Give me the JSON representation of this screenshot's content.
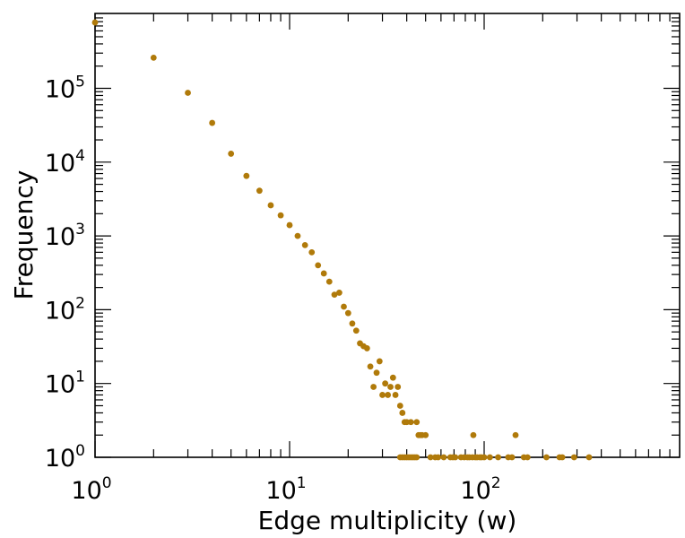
{
  "chart_data": {
    "type": "scatter",
    "title": "",
    "xlabel": "Edge multiplicity (w)",
    "ylabel": "Frequency",
    "xscale": "log",
    "yscale": "log",
    "xlim": [
      1,
      1000
    ],
    "ylim": [
      1,
      1000000
    ],
    "grid": false,
    "marker_color": "#B07A0A",
    "x_ticks": [
      {
        "base": "10",
        "exp": "0"
      },
      {
        "base": "10",
        "exp": "1"
      },
      {
        "base": "10",
        "exp": "2"
      }
    ],
    "y_ticks": [
      {
        "base": "10",
        "exp": "0"
      },
      {
        "base": "10",
        "exp": "1"
      },
      {
        "base": "10",
        "exp": "2"
      },
      {
        "base": "10",
        "exp": "3"
      },
      {
        "base": "10",
        "exp": "4"
      },
      {
        "base": "10",
        "exp": "5"
      }
    ],
    "series": [
      {
        "points": [
          [
            1,
            780000
          ],
          [
            2,
            260000
          ],
          [
            3,
            87000
          ],
          [
            4,
            34000
          ],
          [
            5,
            13000
          ],
          [
            6,
            6500
          ],
          [
            7,
            4100
          ],
          [
            8,
            2600
          ],
          [
            9,
            1900
          ],
          [
            10,
            1400
          ],
          [
            11,
            1000
          ],
          [
            12,
            750
          ],
          [
            13,
            600
          ],
          [
            14,
            400
          ],
          [
            15,
            310
          ],
          [
            16,
            240
          ],
          [
            17,
            160
          ],
          [
            18,
            170
          ],
          [
            19,
            110
          ],
          [
            20,
            90
          ],
          [
            21,
            65
          ],
          [
            22,
            52
          ],
          [
            23,
            35
          ],
          [
            24,
            32
          ],
          [
            25,
            30
          ],
          [
            26,
            17
          ],
          [
            27,
            9
          ],
          [
            28,
            14
          ],
          [
            29,
            20
          ],
          [
            30,
            7
          ],
          [
            31,
            10
          ],
          [
            32,
            7
          ],
          [
            33,
            9
          ],
          [
            34,
            12
          ],
          [
            35,
            7
          ],
          [
            36,
            9
          ],
          [
            37,
            5
          ],
          [
            38,
            4
          ],
          [
            39,
            3
          ],
          [
            40,
            3
          ],
          [
            42,
            3
          ],
          [
            45,
            3
          ],
          [
            46,
            2
          ],
          [
            47,
            2
          ],
          [
            48,
            2
          ],
          [
            50,
            2
          ],
          [
            88,
            2
          ],
          [
            145,
            2
          ],
          [
            37,
            1
          ],
          [
            38,
            1
          ],
          [
            39,
            1
          ],
          [
            40,
            1
          ],
          [
            41,
            1
          ],
          [
            42,
            1
          ],
          [
            43,
            1
          ],
          [
            44,
            1
          ],
          [
            45,
            1
          ],
          [
            53,
            1
          ],
          [
            56,
            1
          ],
          [
            58,
            1
          ],
          [
            62,
            1
          ],
          [
            67,
            1
          ],
          [
            69,
            1
          ],
          [
            71,
            1
          ],
          [
            76,
            1
          ],
          [
            79,
            1
          ],
          [
            82,
            1
          ],
          [
            84,
            1
          ],
          [
            87,
            1
          ],
          [
            90,
            1
          ],
          [
            92,
            1
          ],
          [
            95,
            1
          ],
          [
            97,
            1
          ],
          [
            100,
            1
          ],
          [
            107,
            1
          ],
          [
            118,
            1
          ],
          [
            133,
            1
          ],
          [
            139,
            1
          ],
          [
            160,
            1
          ],
          [
            167,
            1
          ],
          [
            209,
            1
          ],
          [
            244,
            1
          ],
          [
            252,
            1
          ],
          [
            290,
            1
          ],
          [
            346,
            1
          ]
        ]
      }
    ]
  }
}
